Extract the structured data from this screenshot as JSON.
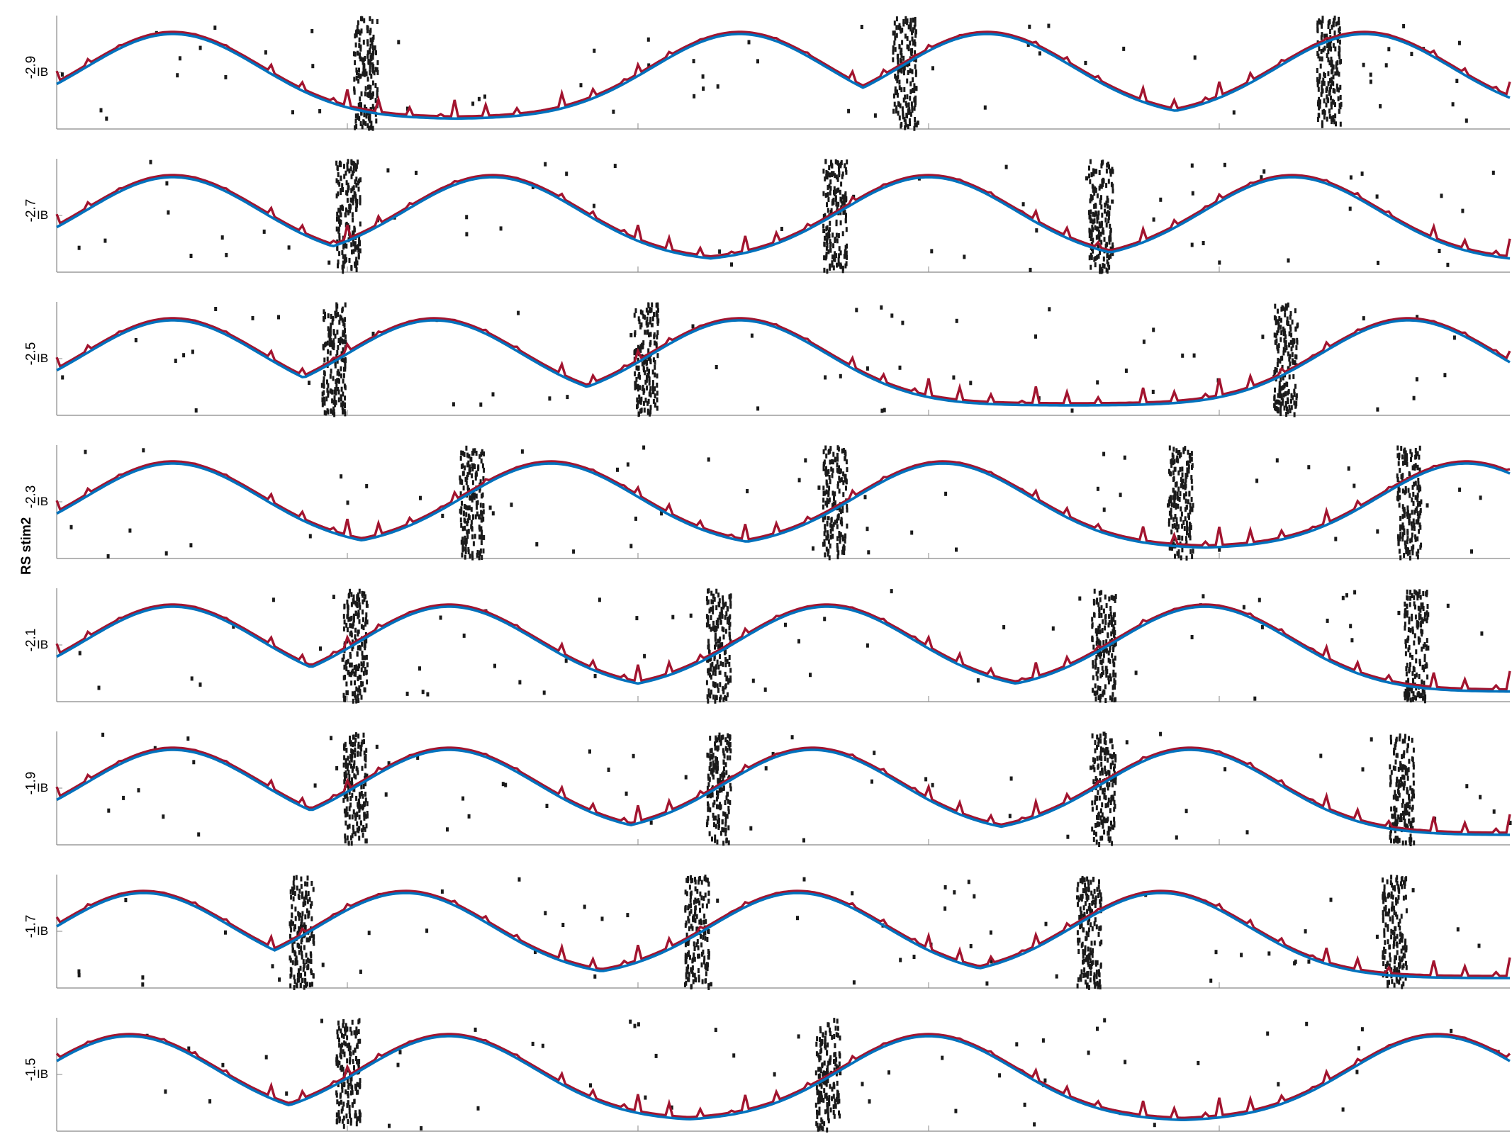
{
  "figure": {
    "ylabel": "RS stim2"
  },
  "chart_data": {
    "type": "line",
    "n_panels": 8,
    "x_tick_count": 5,
    "line_colors": {
      "rs_trace": "#a2142f",
      "ib_trace": "#0072bd",
      "raster": "#1a1a1a"
    },
    "series_names": [
      "RS",
      "IB"
    ],
    "panels": [
      {
        "label": "-2.9",
        "tick_label": "IB",
        "bursts": [
          0.212,
          0.583,
          0.875
        ],
        "peaks": [
          0.08,
          0.47,
          0.64,
          0.9
        ]
      },
      {
        "label": "-2.7",
        "tick_label": "IB",
        "bursts": [
          0.2,
          0.535,
          0.718
        ],
        "peaks": [
          0.08,
          0.3,
          0.6,
          0.85
        ]
      },
      {
        "label": "-2.5",
        "tick_label": "IB",
        "bursts": [
          0.19,
          0.405,
          0.845
        ],
        "peaks": [
          0.08,
          0.26,
          0.47,
          0.93
        ]
      },
      {
        "label": "-2.3",
        "tick_label": "IB",
        "bursts": [
          0.285,
          0.535,
          0.773,
          0.93
        ],
        "peaks": [
          0.08,
          0.34,
          0.61,
          0.97
        ]
      },
      {
        "label": "-2.1",
        "tick_label": "IB",
        "bursts": [
          0.205,
          0.455,
          0.72,
          0.935
        ],
        "peaks": [
          0.08,
          0.27,
          0.53,
          0.79
        ]
      },
      {
        "label": "-1.9",
        "tick_label": "IB",
        "bursts": [
          0.205,
          0.455,
          0.72,
          0.925
        ],
        "peaks": [
          0.08,
          0.27,
          0.52,
          0.78
        ]
      },
      {
        "label": "-1.7",
        "tick_label": "IB",
        "bursts": [
          0.168,
          0.44,
          0.71,
          0.92
        ],
        "peaks": [
          0.06,
          0.24,
          0.51,
          0.76
        ]
      },
      {
        "label": "-1.5",
        "tick_label": "IB",
        "bursts": [
          0.2,
          0.53
        ],
        "peaks": [
          0.05,
          0.27,
          0.6,
          0.95
        ]
      }
    ]
  }
}
